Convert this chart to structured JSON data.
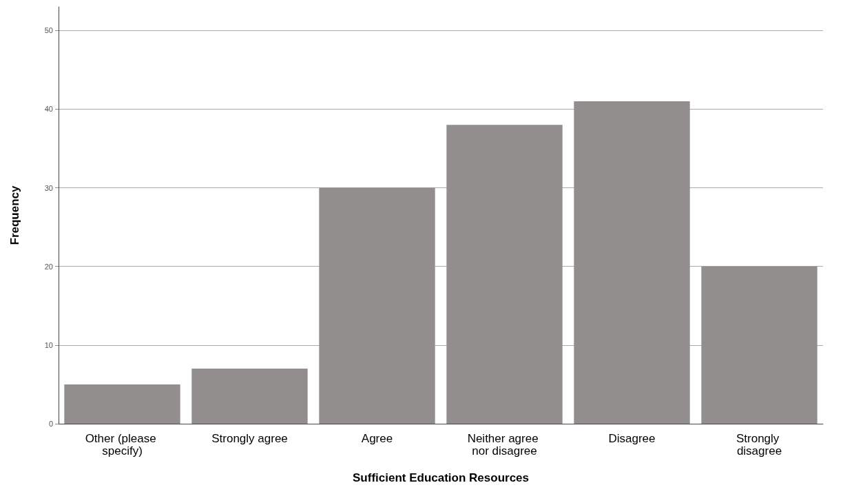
{
  "chart_data": {
    "type": "bar",
    "xlabel": "Sufficient Education Resources",
    "ylabel": "Frequency",
    "categories": [
      "Other (please specify)",
      "Strongly agree",
      "Agree",
      "Neither agree nor disagree",
      "Disagree",
      "Strongly disagree"
    ],
    "values": [
      5,
      7,
      30,
      38,
      41,
      20
    ],
    "color": "#918e8d",
    "ylim": [
      0,
      53
    ],
    "yticks": [
      0,
      10,
      20,
      30,
      40,
      50
    ],
    "grid": "y"
  }
}
